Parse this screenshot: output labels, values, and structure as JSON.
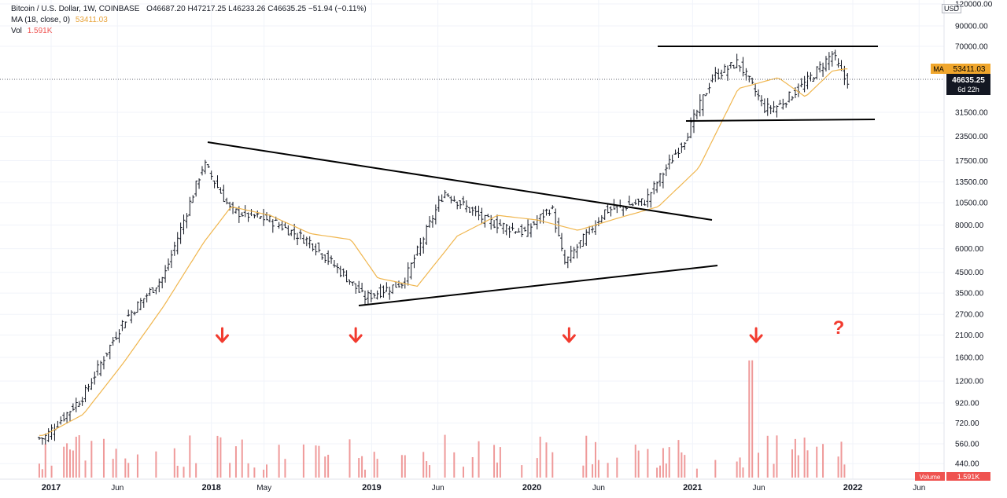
{
  "header": {
    "symbol": "Bitcoin / U.S. Dollar, 1W, COINBASE",
    "ohlc": "O46687.20  H47217.25  L46233.26  C46635.25  −51.94 (−0.11%)",
    "ma_label": "MA (18, close, 0)",
    "ma_value": "53411.03",
    "vol_label": "Vol",
    "vol_value": "1.591K"
  },
  "price_axis": {
    "currency": "USD",
    "ticks": [
      "120000.00",
      "90000.00",
      "70000.00",
      "31500.00",
      "23500.00",
      "17500.00",
      "13500.00",
      "10500.00",
      "8000.00",
      "6000.00",
      "4500.00",
      "3500.00",
      "2700.00",
      "2100.00",
      "1600.00",
      "1200.00",
      "920.00",
      "720.00",
      "560.00",
      "440.00"
    ],
    "ma_badge_label": "MA",
    "ma_badge_value": "53411.03",
    "last_price": "46635.25",
    "countdown": "6d 22h",
    "volume_badge_label": "Volume",
    "volume_badge_value": "1.591K"
  },
  "time_axis": {
    "ticks": [
      "2017",
      "Jun",
      "2018",
      "May",
      "2019",
      "Jun",
      "2020",
      "Jun",
      "2021",
      "Jun",
      "2022",
      "Jun"
    ]
  },
  "annotations": {
    "question_mark": "?"
  },
  "colors": {
    "ma": "#f0b64e",
    "candle": "#131722",
    "volume": "#ef9a9a",
    "arrow": "#f23b2f",
    "trendline": "#000000"
  },
  "chart_data": {
    "type": "line",
    "title": "Bitcoin / U.S. Dollar, 1W, COINBASE",
    "scale": "log",
    "xlabel": "",
    "ylabel": "USD",
    "ylim": [
      400,
      130000
    ],
    "x_range": [
      "2016-12",
      "2022-07"
    ],
    "series": [
      {
        "name": "BTCUSD",
        "x": [
          "2016-12",
          "2017-03",
          "2017-06",
          "2017-09",
          "2017-12",
          "2018-02",
          "2018-05",
          "2018-08",
          "2018-11",
          "2018-12",
          "2019-03",
          "2019-06",
          "2019-09",
          "2019-12",
          "2020-02",
          "2020-03",
          "2020-06",
          "2020-09",
          "2020-12",
          "2021-02",
          "2021-04",
          "2021-06",
          "2021-07",
          "2021-09",
          "2021-11",
          "2021-12"
        ],
        "values": [
          600,
          1000,
          2500,
          4300,
          17000,
          9500,
          8500,
          6500,
          4000,
          3300,
          4000,
          12000,
          8500,
          7300,
          10000,
          5000,
          9500,
          10700,
          23000,
          48000,
          58000,
          33000,
          34000,
          45000,
          64000,
          46635
        ]
      },
      {
        "name": "MA (18, close, 0)",
        "x": [
          "2016-12",
          "2017-03",
          "2017-06",
          "2017-09",
          "2017-12",
          "2018-02",
          "2018-05",
          "2018-08",
          "2018-11",
          "2019-01",
          "2019-04",
          "2019-07",
          "2019-10",
          "2020-01",
          "2020-04",
          "2020-07",
          "2020-10",
          "2021-01",
          "2021-04",
          "2021-07",
          "2021-09",
          "2021-11",
          "2021-12"
        ],
        "values": [
          620,
          800,
          1500,
          3000,
          6500,
          10000,
          9000,
          7200,
          6700,
          4200,
          3800,
          7000,
          9000,
          8500,
          7500,
          8700,
          10000,
          16000,
          42000,
          48000,
          38000,
          52000,
          53411
        ]
      }
    ],
    "volume": {
      "arrow_dates": [
        "2018-01",
        "2018-11",
        "2020-03",
        "2021-05"
      ],
      "question_date": "2021-12"
    }
  }
}
